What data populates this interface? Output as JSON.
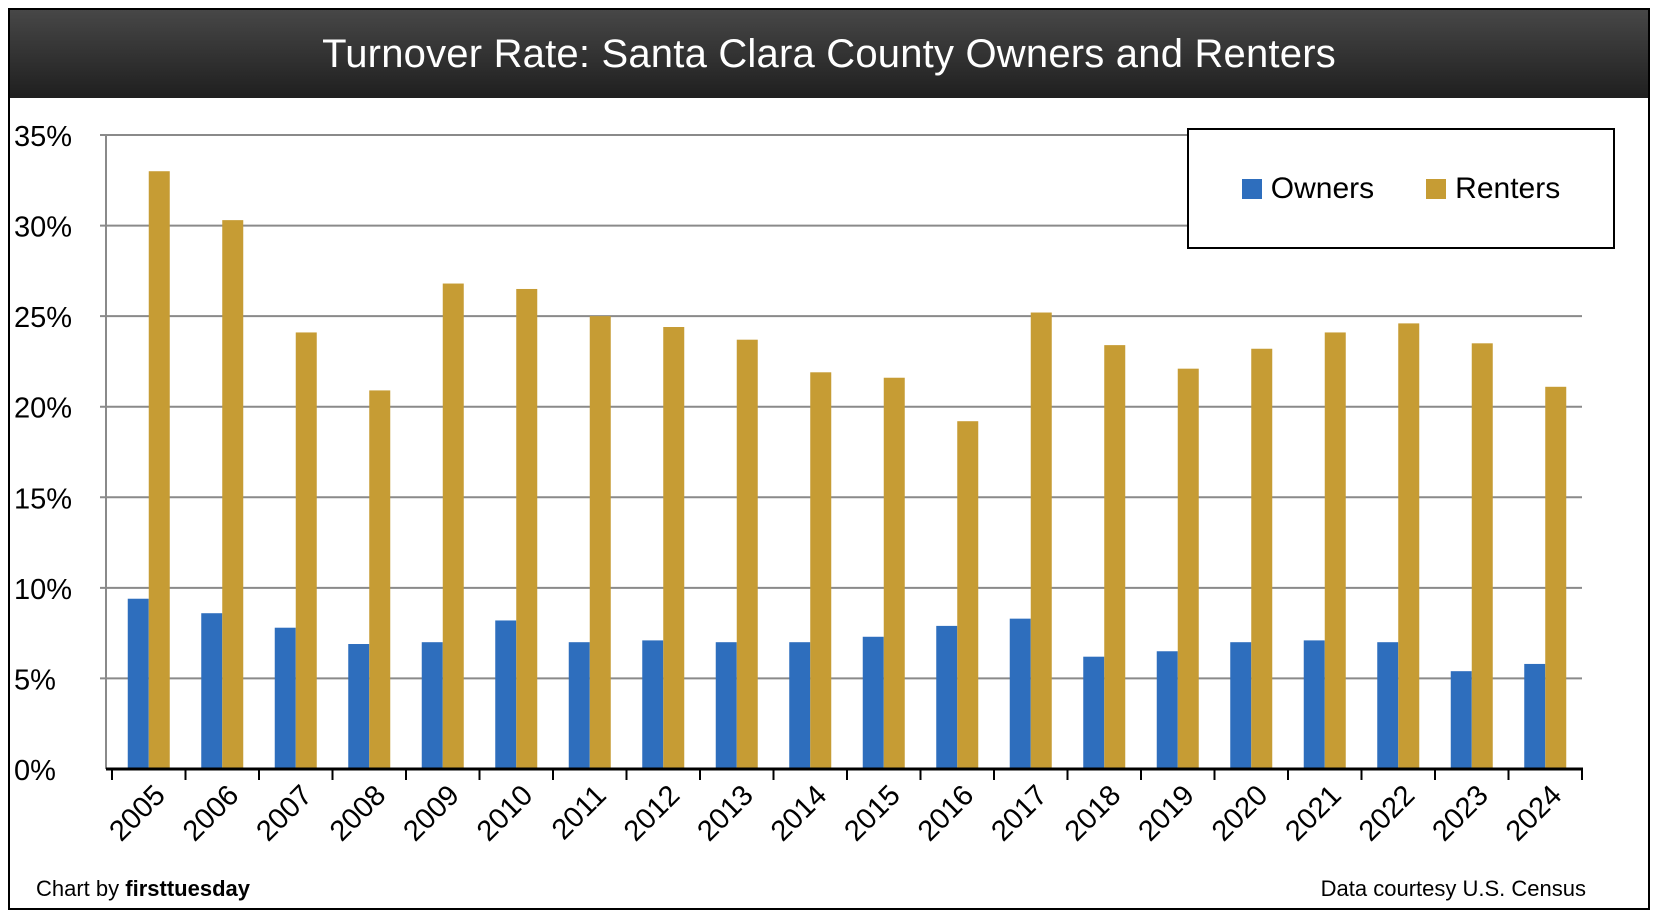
{
  "chart_data": {
    "type": "bar",
    "title": "Turnover Rate: Santa Clara County Owners and Renters",
    "xlabel": "",
    "ylabel": "",
    "ylim": [
      0,
      35
    ],
    "yticks": [
      0,
      5,
      10,
      15,
      20,
      25,
      30,
      35
    ],
    "ytick_labels": [
      "0%",
      "5%",
      "10%",
      "15%",
      "20%",
      "25%",
      "30%",
      "35%"
    ],
    "grid": true,
    "legend_position": "top-right",
    "categories": [
      "2005",
      "2006",
      "2007",
      "2008",
      "2009",
      "2010",
      "2011",
      "2012",
      "2013",
      "2014",
      "2015",
      "2016",
      "2017",
      "2018",
      "2019",
      "2020",
      "2021",
      "2022",
      "2023",
      "2024"
    ],
    "series": [
      {
        "name": "Owners",
        "color": "#2E6EBD",
        "values": [
          9.4,
          8.6,
          7.8,
          6.9,
          7.0,
          8.2,
          7.0,
          7.1,
          7.0,
          7.0,
          7.3,
          7.9,
          8.3,
          6.2,
          6.5,
          7.0,
          7.1,
          7.0,
          5.4,
          5.8
        ]
      },
      {
        "name": "Renters",
        "color": "#C69C34",
        "values": [
          33.0,
          30.3,
          24.1,
          20.9,
          26.8,
          26.5,
          25.0,
          24.4,
          23.7,
          21.9,
          21.6,
          19.2,
          25.2,
          23.4,
          22.1,
          23.2,
          24.1,
          24.6,
          23.5,
          21.1
        ]
      }
    ]
  },
  "footer": {
    "credit_prefix": "Chart by ",
    "credit_brand": "firsttuesday",
    "source": "Data courtesy U.S. Census"
  }
}
